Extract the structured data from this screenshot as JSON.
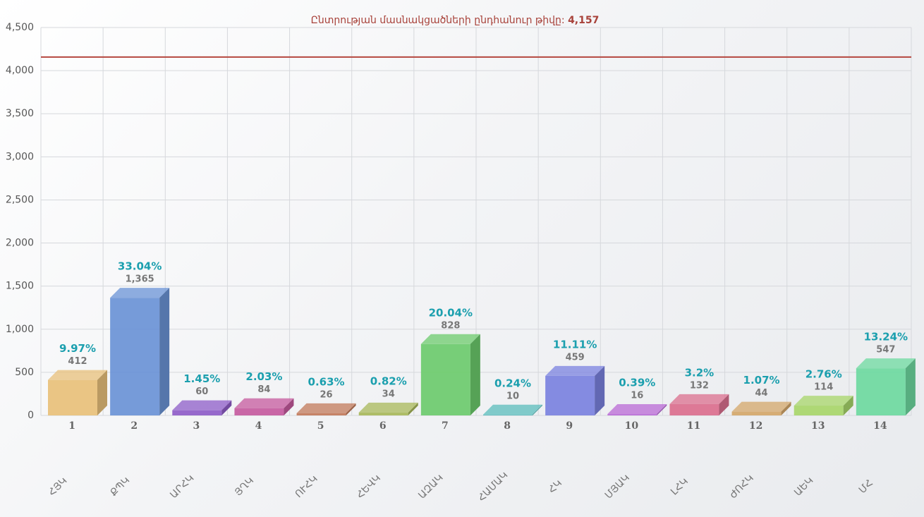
{
  "chart_data": {
    "type": "bar3d",
    "title": "Ընտրության մասնակցածների ընդհանուր թիվը:",
    "reference_line": {
      "value": 4157,
      "label": "4,157",
      "color": "#b5473f"
    },
    "categories": [
      "1",
      "2",
      "3",
      "4",
      "5",
      "6",
      "7",
      "8",
      "9",
      "10",
      "11",
      "12",
      "13",
      "14"
    ],
    "category_names": [
      "ՀՅԿ",
      "ՔՊԿ",
      "ԱՐՀԿ",
      "ՅՂԿ",
      "ՈՒՀԿ",
      "ՀԵՎԿ",
      "ԱԶԱԿ",
      "ՀԱՄԱԿ",
      "ՀԿ",
      "ՄՅԱԿ",
      "ԼՀԿ",
      "ԺՈՀԿ",
      "ԱԵԿ",
      "ՄՀ"
    ],
    "values": [
      412,
      1365,
      60,
      84,
      26,
      34,
      828,
      10,
      459,
      16,
      132,
      44,
      114,
      547
    ],
    "value_labels": [
      "412",
      "1,365",
      "60",
      "84",
      "26",
      "34",
      "828",
      "10",
      "459",
      "16",
      "132",
      "44",
      "114",
      "547"
    ],
    "percent_labels": [
      "9.97%",
      "33.04%",
      "1.45%",
      "2.03%",
      "0.63%",
      "0.82%",
      "20.04%",
      "0.24%",
      "11.11%",
      "0.39%",
      "3.2%",
      "1.07%",
      "2.76%",
      "13.24%"
    ],
    "colors": [
      "#e8c07a",
      "#6a93d6",
      "#8e5cc8",
      "#c55a9e",
      "#c27a5a",
      "#a8b85a",
      "#6ccb6c",
      "#5bbcbc",
      "#7b82e0",
      "#b96ad6",
      "#db6f8e",
      "#d4a76a",
      "#a8d66a",
      "#6ed9a0"
    ],
    "ylim": [
      0,
      4500
    ],
    "yticks": [
      0,
      500,
      {
        "value": 1000,
        "label": "1,000"
      },
      {
        "value": 1500,
        "label": "1,500"
      },
      {
        "value": 2000,
        "label": "2,000"
      },
      {
        "value": 2500,
        "label": "2,500"
      },
      {
        "value": 3000,
        "label": "3,000"
      },
      {
        "value": 3500,
        "label": "3,500"
      },
      {
        "value": 4000,
        "label": "4,000"
      },
      {
        "value": 4500,
        "label": "4,500"
      }
    ],
    "grid": true
  }
}
